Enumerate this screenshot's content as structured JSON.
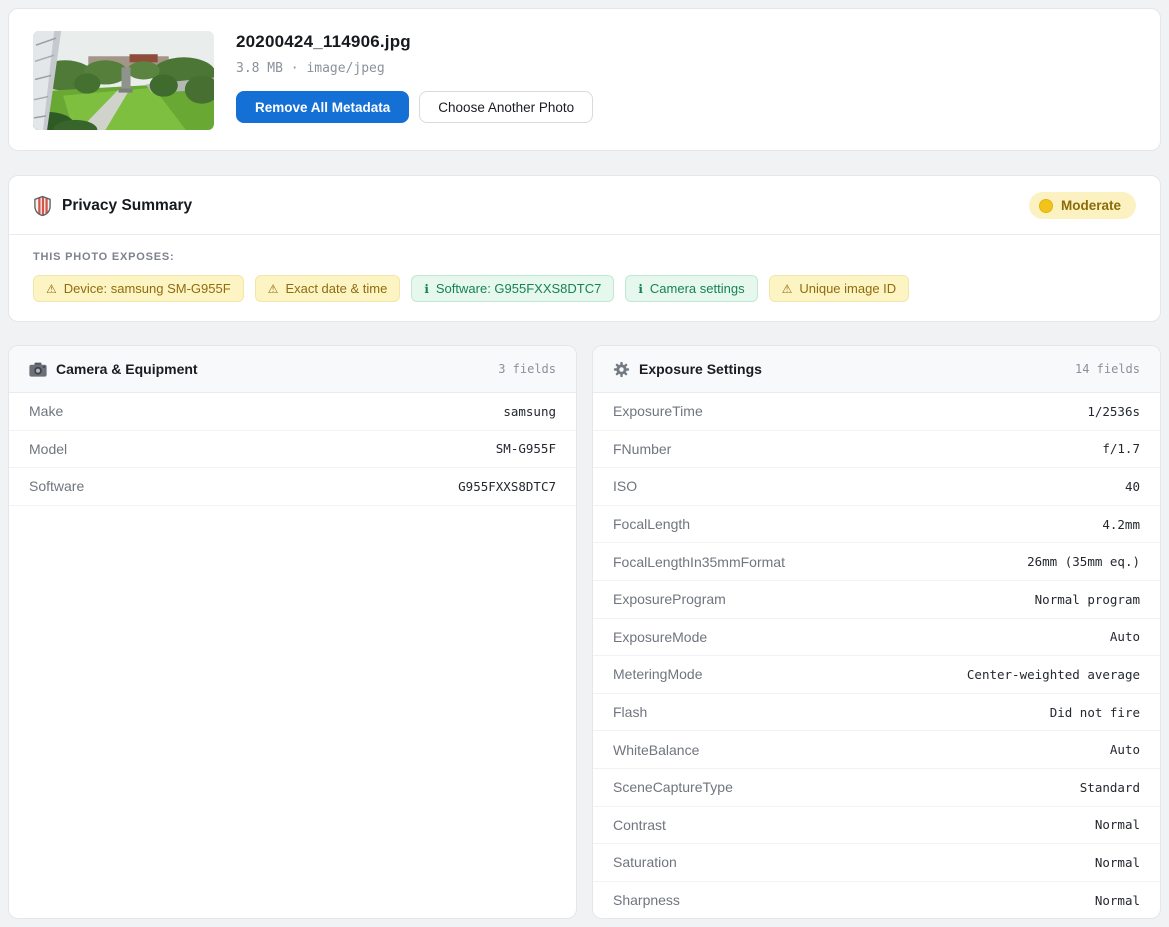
{
  "file_card": {
    "filename": "20200424_114906.jpg",
    "meta": "3.8 MB · image/jpeg",
    "remove_button": "Remove All Metadata",
    "choose_button": "Choose Another Photo",
    "thumbnail": "park scene with elevated walkway, lawn, trees and monument"
  },
  "privacy": {
    "title": "Privacy Summary",
    "level_label": "Moderate",
    "exposes_label": "THIS PHOTO EXPOSES:",
    "badges": [
      {
        "icon": "⚠",
        "label": "Device: samsung SM-G955F",
        "type": "warning"
      },
      {
        "icon": "⚠",
        "label": "Exact date & time",
        "type": "warning"
      },
      {
        "icon": "ℹ",
        "label": "Software: G955FXXS8DTC7",
        "type": "info"
      },
      {
        "icon": "ℹ",
        "label": "Camera settings",
        "type": "info"
      },
      {
        "icon": "⚠",
        "label": "Unique image ID",
        "type": "warning"
      }
    ]
  },
  "sections": [
    {
      "title": "Camera & Equipment",
      "icon": "camera-icon",
      "fields_label": "3 fields",
      "rows": [
        {
          "label": "Make",
          "value": "samsung"
        },
        {
          "label": "Model",
          "value": "SM-G955F"
        },
        {
          "label": "Software",
          "value": "G955FXXS8DTC7"
        }
      ]
    },
    {
      "title": "Exposure Settings",
      "icon": "gear-icon",
      "fields_label": "14 fields",
      "rows": [
        {
          "label": "ExposureTime",
          "value": "1/2536s"
        },
        {
          "label": "FNumber",
          "value": "f/1.7"
        },
        {
          "label": "ISO",
          "value": "40"
        },
        {
          "label": "FocalLength",
          "value": "4.2mm"
        },
        {
          "label": "FocalLengthIn35mmFormat",
          "value": "26mm (35mm eq.)"
        },
        {
          "label": "ExposureProgram",
          "value": "Normal program"
        },
        {
          "label": "ExposureMode",
          "value": "Auto"
        },
        {
          "label": "MeteringMode",
          "value": "Center-weighted average"
        },
        {
          "label": "Flash",
          "value": "Did not fire"
        },
        {
          "label": "WhiteBalance",
          "value": "Auto"
        },
        {
          "label": "SceneCaptureType",
          "value": "Standard"
        },
        {
          "label": "Contrast",
          "value": "Normal"
        },
        {
          "label": "Saturation",
          "value": "Normal"
        },
        {
          "label": "Sharpness",
          "value": "Normal"
        }
      ]
    }
  ],
  "colors": {
    "accent": "#1570d6",
    "warning-bg": "#fdf4c4",
    "warning-border": "#f3e6ab",
    "warning-text": "#8f6c0e",
    "info-bg": "#e6f7ee",
    "info-border": "#bfe9d3",
    "info-text": "#17834f",
    "level-bg": "#fcf1c1",
    "level-text": "#8a6c08",
    "level-dot": "#f2c41b"
  }
}
